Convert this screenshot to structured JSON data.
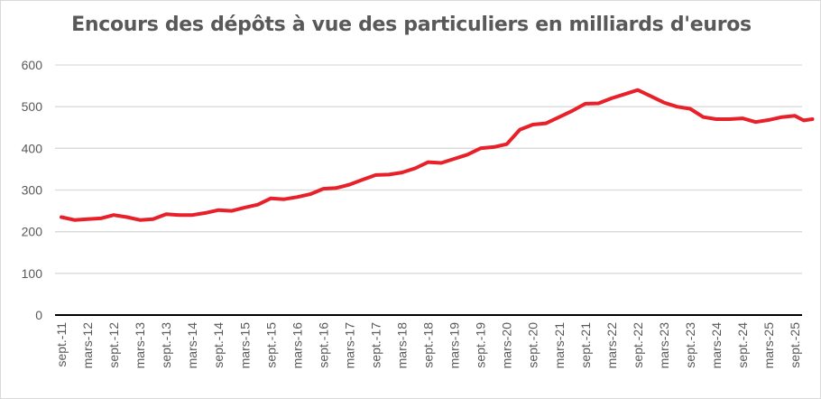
{
  "chart_data": {
    "type": "line",
    "title": "Encours des dépôts à vue des particuliers en milliards d'euros",
    "xlabel": "",
    "ylabel": "",
    "ylim": [
      0,
      600
    ],
    "yticks": [
      0,
      100,
      200,
      300,
      400,
      500,
      600
    ],
    "grid": true,
    "legend": "none",
    "xtick_labels": [
      "sept.-11",
      "mars-12",
      "sept.-12",
      "mars-13",
      "sept.-13",
      "mars-14",
      "sept.-14",
      "mars-15",
      "sept.-15",
      "mars-16",
      "sept.-16",
      "mars-17",
      "sept.-17",
      "mars-18",
      "sept.-18",
      "mars-19",
      "sept.-19",
      "mars-20",
      "sept.-20",
      "mars-21",
      "sept.-21",
      "mars-22",
      "sept.-22",
      "mars-23",
      "sept.-23",
      "mars-24",
      "sept.-24",
      "mars-25",
      "sept.-25"
    ],
    "series": [
      {
        "name": "Dépôts à vue des particuliers",
        "color": "#e8202a",
        "months_since_sept_2011": [
          0,
          3,
          6,
          9,
          12,
          15,
          18,
          21,
          24,
          27,
          30,
          33,
          36,
          39,
          42,
          45,
          48,
          51,
          54,
          57,
          60,
          63,
          66,
          69,
          72,
          75,
          78,
          81,
          84,
          87,
          90,
          93,
          96,
          99,
          102,
          105,
          108,
          111,
          114,
          117,
          120,
          123,
          126,
          129,
          132,
          135,
          138,
          141,
          144,
          147,
          150,
          153,
          156,
          159,
          162,
          165,
          168,
          170,
          172
        ],
        "values": [
          235,
          228,
          230,
          232,
          240,
          235,
          228,
          230,
          242,
          240,
          240,
          245,
          252,
          250,
          258,
          265,
          280,
          278,
          283,
          290,
          303,
          305,
          313,
          325,
          336,
          337,
          342,
          352,
          367,
          365,
          375,
          385,
          400,
          403,
          410,
          445,
          457,
          460,
          475,
          490,
          507,
          508,
          520,
          530,
          540,
          525,
          510,
          500,
          495,
          475,
          470,
          470,
          472,
          463,
          468,
          475,
          478,
          467,
          470
        ]
      }
    ]
  }
}
